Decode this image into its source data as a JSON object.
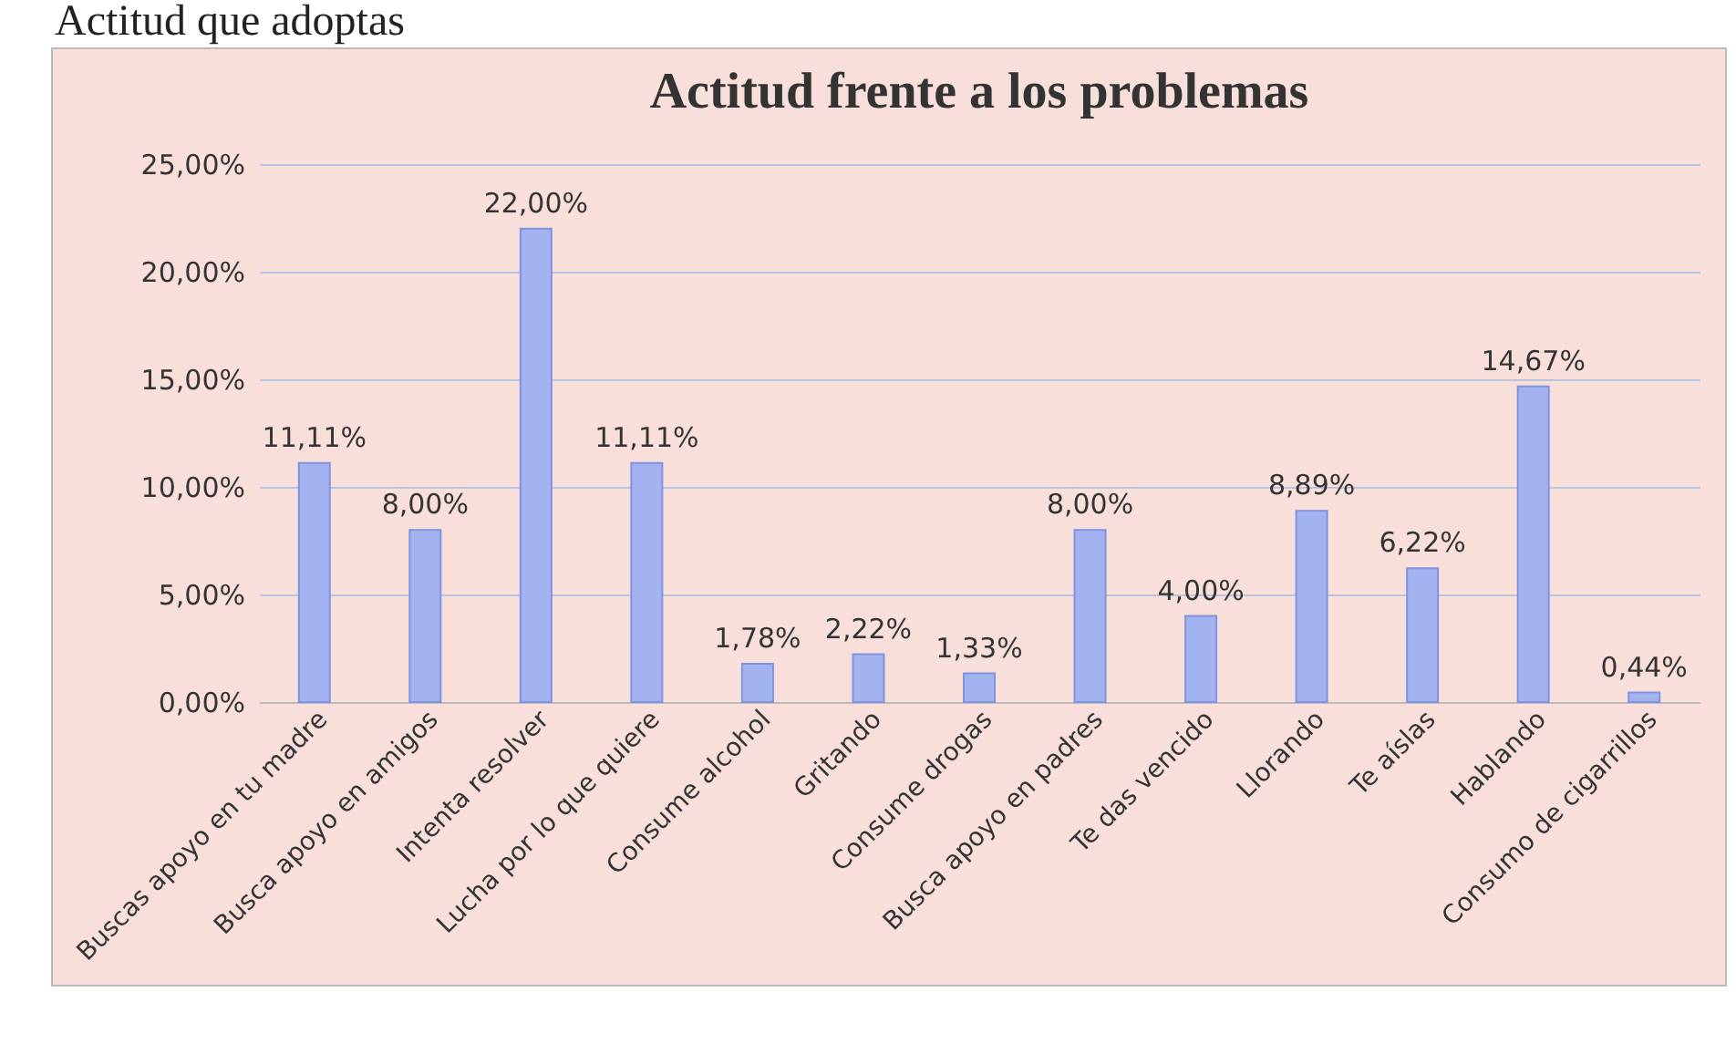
{
  "chart_data": {
    "type": "bar",
    "title": "Actitud frente a los problemas",
    "annotations": [
      "Actitud que adoptas"
    ],
    "categories": [
      "Buscas apoyo en tu madre",
      "Busca apoyo en amigos",
      "Intenta resolver",
      "Lucha por lo que quiere",
      "Consume alcohol",
      "Gritando",
      "Consume drogas",
      "Busca apoyo en padres",
      "Te das vencido",
      "Llorando",
      "Te aíslas",
      "Hablando",
      "Consumo de cigarrillos"
    ],
    "values": [
      11.11,
      8.0,
      22.0,
      11.11,
      1.78,
      2.22,
      1.33,
      8.0,
      4.0,
      8.89,
      6.22,
      14.67,
      0.44
    ],
    "value_labels": [
      "11,11%",
      "8,00%",
      "22,00%",
      "11,11%",
      "1,78%",
      "2,22%",
      "1,33%",
      "8,00%",
      "4,00%",
      "8,89%",
      "6,22%",
      "14,67%",
      "0,44%"
    ],
    "color": "#a3b3ef",
    "ylim": [
      0,
      25
    ],
    "yticks": [
      {
        "value": 0,
        "label": "0,00%"
      },
      {
        "value": 5,
        "label": "5,00%"
      },
      {
        "value": 10,
        "label": "10,00%"
      },
      {
        "value": 15,
        "label": "15,00%"
      },
      {
        "value": 20,
        "label": "20,00%"
      },
      {
        "value": 25,
        "label": "25,00%"
      }
    ],
    "grid": "y"
  }
}
